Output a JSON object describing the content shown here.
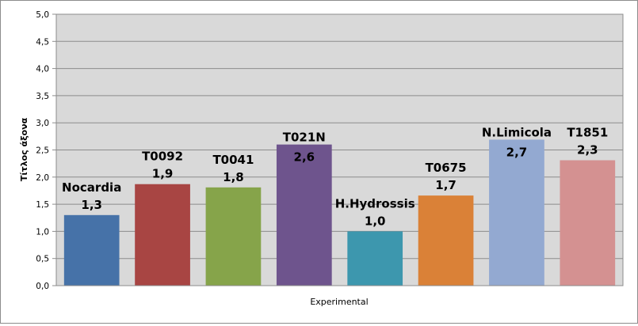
{
  "chart_data": {
    "type": "bar",
    "categories": [
      "Nocardia",
      "T0092",
      "T0041",
      "T021N",
      "H.Hydrossis",
      "T0675",
      "N.Limicola",
      "T1851"
    ],
    "values": [
      1.3,
      1.87,
      1.81,
      2.6,
      1.0,
      1.66,
      2.69,
      2.31
    ],
    "value_labels": [
      "1,3",
      "1,9",
      "1,8",
      "2,6",
      "1,0",
      "1,7",
      "2,7",
      "2,3"
    ],
    "colors": [
      "#4672A8",
      "#A84543",
      "#86A44A",
      "#6E548D",
      "#3D97AE",
      "#DA8137",
      "#93A9D1",
      "#D49191"
    ],
    "y_ticks": [
      "0,0",
      "0,5",
      "1,0",
      "1,5",
      "2,0",
      "2,5",
      "3,0",
      "3,5",
      "4,0",
      "4,5",
      "5,0"
    ],
    "ylim": [
      0,
      5
    ],
    "xlabel": "Experimental",
    "ylabel": "Τίτλος άξονα",
    "grid": true,
    "legend": "none"
  }
}
